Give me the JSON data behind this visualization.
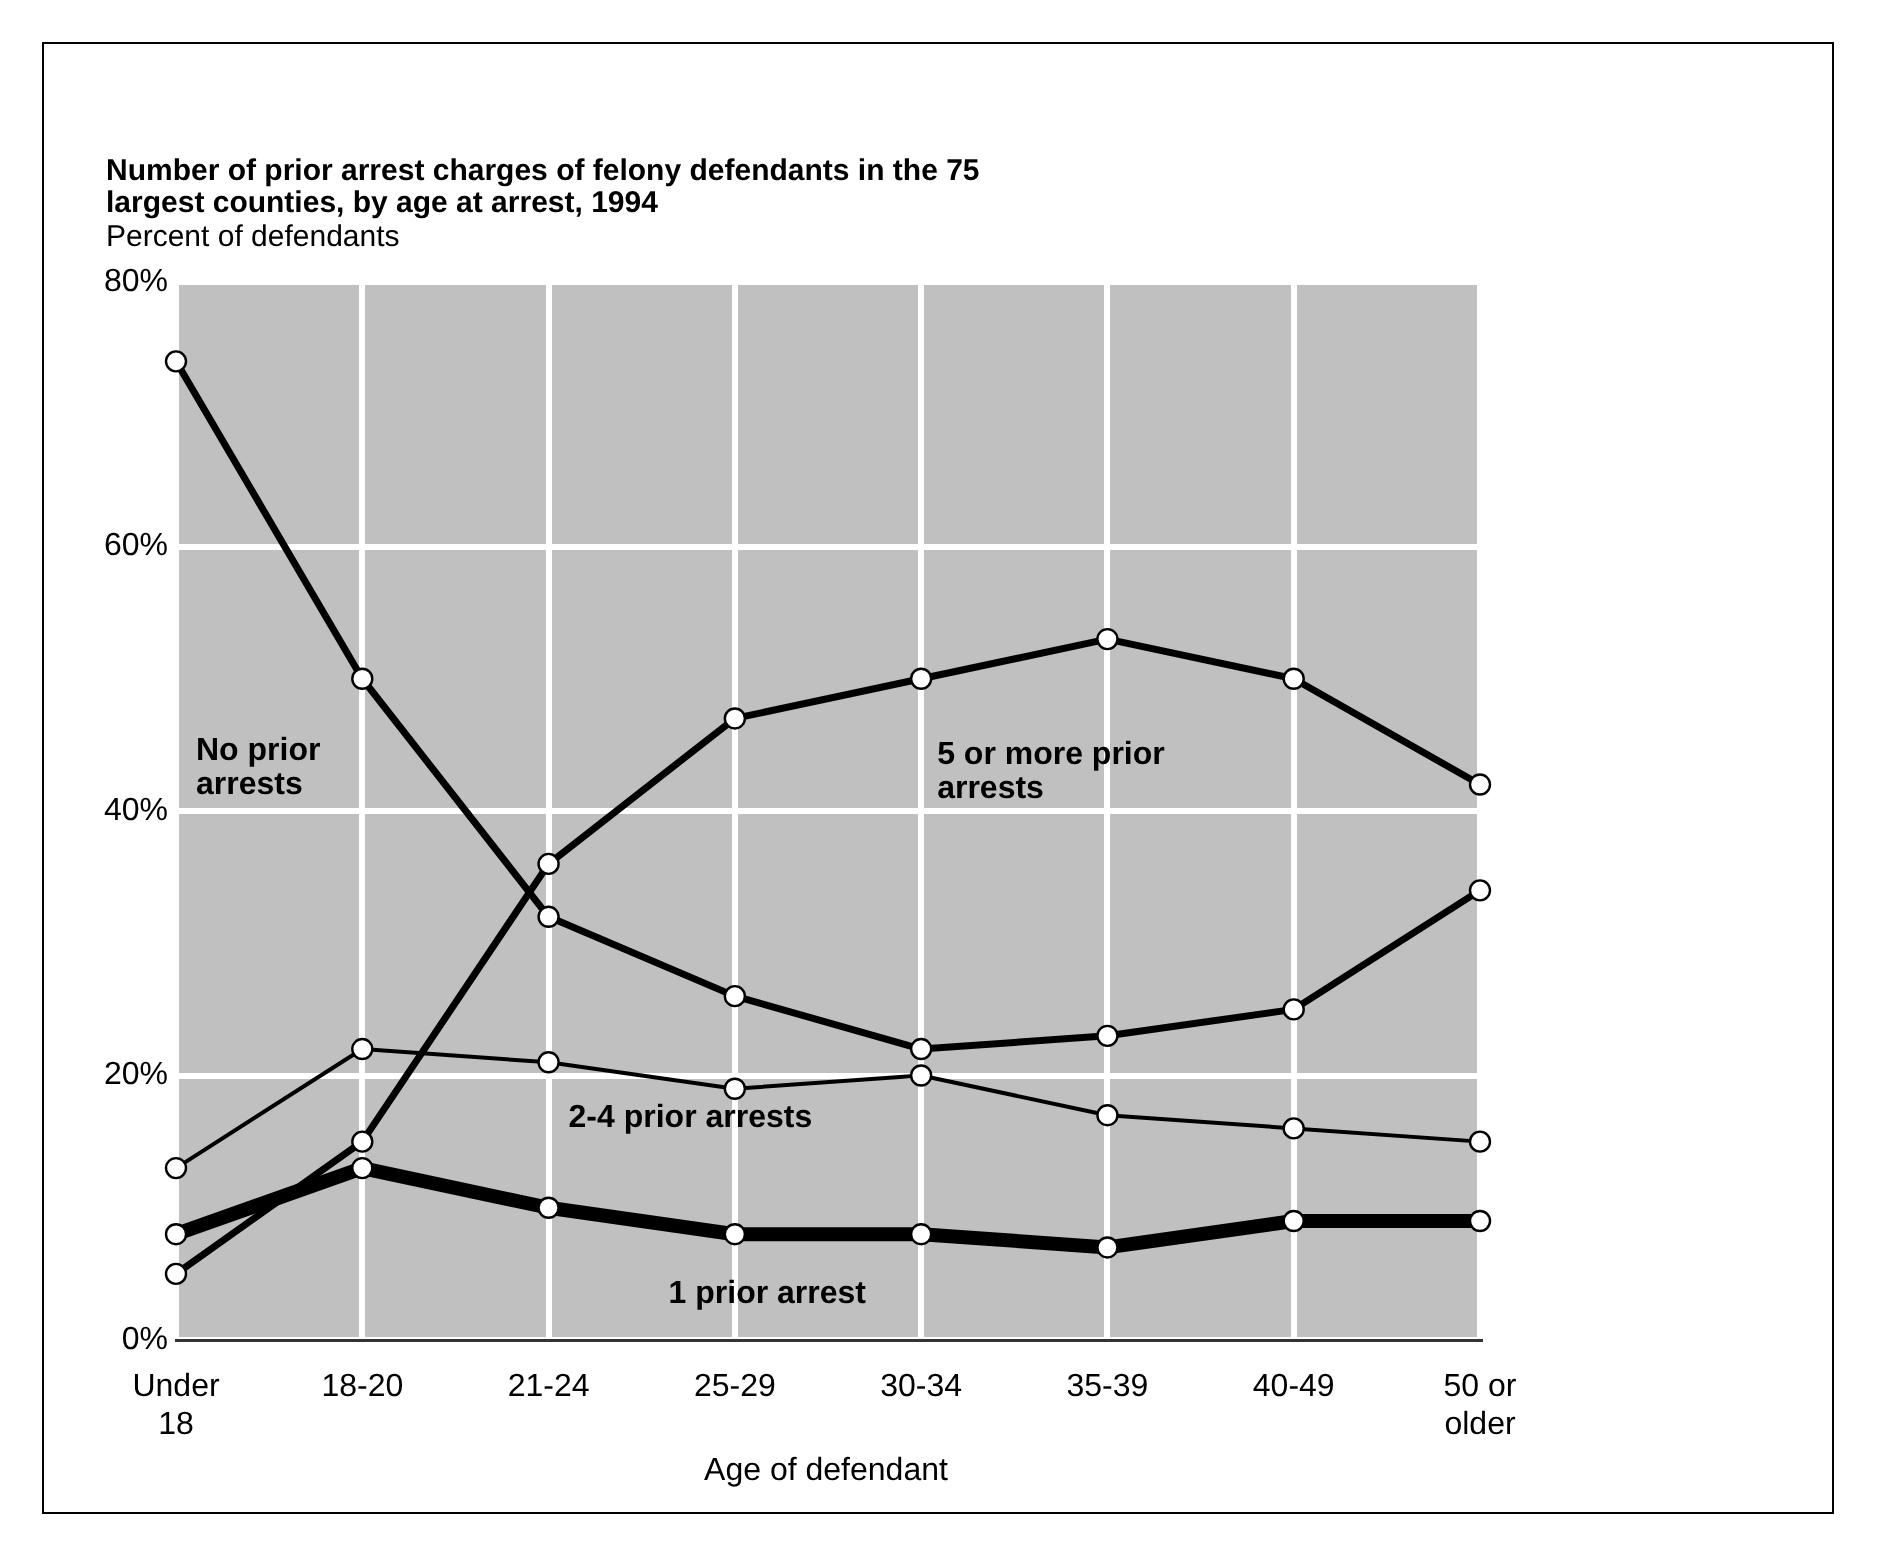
{
  "chart_data": {
    "type": "line",
    "title": "Number of prior arrest charges of felony defendants in the 75 largest counties, by age at arrest, 1994",
    "ylabel": "Percent of defendants",
    "xlabel": "Age of defendant",
    "categories": [
      "Under 18",
      "18-20",
      "21-24",
      "25-29",
      "30-34",
      "35-39",
      "40-49",
      "50 or older"
    ],
    "series": [
      {
        "name": "No prior arrests",
        "color": "#000000",
        "values": [
          74,
          50,
          32,
          26,
          22,
          23,
          25,
          34
        ]
      },
      {
        "name": "5 or more prior arrests",
        "color": "#000000",
        "values": [
          5,
          15,
          36,
          47,
          50,
          53,
          50,
          42
        ]
      },
      {
        "name": "2-4 prior arrests",
        "color": "#000000",
        "values": [
          13,
          22,
          21,
          19,
          20,
          17,
          16,
          15
        ]
      },
      {
        "name": "1 prior arrest",
        "color": "#000000",
        "values": [
          8,
          13,
          10,
          8,
          8,
          7,
          9,
          9
        ]
      }
    ],
    "ylim": [
      0,
      80
    ],
    "yticks": [
      {
        "value": 0,
        "label": "0%"
      },
      {
        "value": 20,
        "label": "20%"
      },
      {
        "value": 40,
        "label": "40%"
      },
      {
        "value": 60,
        "label": "60%"
      },
      {
        "value": 80,
        "label": "80%"
      }
    ],
    "grid": true,
    "marker": "circle",
    "line_style": "solid"
  }
}
